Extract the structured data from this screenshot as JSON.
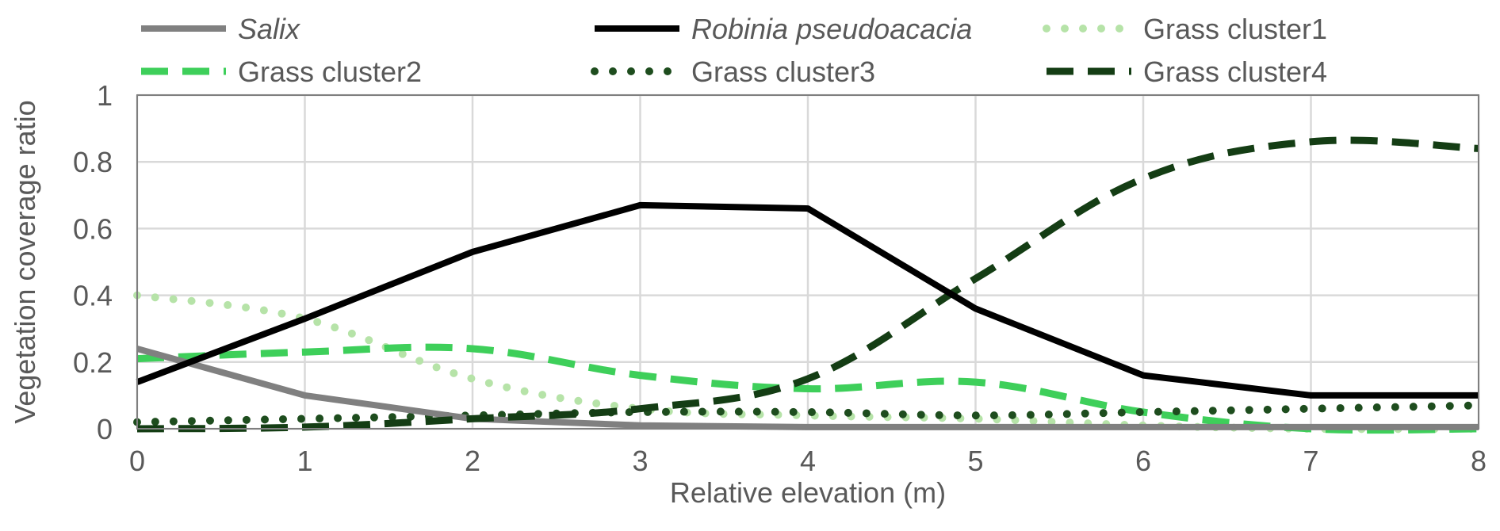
{
  "chart_data": {
    "type": "line",
    "xlabel": "Relative elevation (m)",
    "ylabel": "Vegetation coverage ratio",
    "x": [
      0,
      1,
      2,
      3,
      4,
      5,
      6,
      7,
      8
    ],
    "xlim": [
      0,
      8
    ],
    "ylim": [
      0,
      1
    ],
    "x_ticks": [
      "0",
      "1",
      "2",
      "3",
      "4",
      "5",
      "6",
      "7",
      "8"
    ],
    "y_ticks": [
      "0",
      "0.2",
      "0.4",
      "0.6",
      "0.8",
      "1"
    ],
    "grid": true,
    "legend_position": "top",
    "series": [
      {
        "name": "Salix",
        "italic": true,
        "color": "#808080",
        "style": "solid",
        "values": [
          0.24,
          0.1,
          0.03,
          0.01,
          0.005,
          0.005,
          0.005,
          0.005,
          0.005
        ]
      },
      {
        "name": "Robinia pseudoacacia",
        "italic": true,
        "color": "#000000",
        "style": "solid",
        "values": [
          0.14,
          0.33,
          0.53,
          0.67,
          0.66,
          0.36,
          0.16,
          0.1,
          0.1
        ]
      },
      {
        "name": "Grass cluster1",
        "italic": false,
        "color": "#b6e3a8",
        "style": "dotted",
        "values": [
          0.4,
          0.33,
          0.15,
          0.06,
          0.04,
          0.03,
          0.01,
          0.0,
          0.0
        ]
      },
      {
        "name": "Grass cluster2",
        "italic": false,
        "color": "#3ecf5a",
        "style": "dashed",
        "values": [
          0.21,
          0.23,
          0.24,
          0.16,
          0.12,
          0.14,
          0.05,
          0.0,
          0.0
        ]
      },
      {
        "name": "Grass cluster3",
        "italic": false,
        "color": "#1e4d1e",
        "style": "dotted",
        "values": [
          0.02,
          0.03,
          0.04,
          0.05,
          0.05,
          0.04,
          0.05,
          0.06,
          0.07
        ]
      },
      {
        "name": "Grass cluster4",
        "italic": false,
        "color": "#143d14",
        "style": "dashed",
        "values": [
          0.0,
          0.005,
          0.03,
          0.06,
          0.15,
          0.45,
          0.75,
          0.86,
          0.84
        ]
      }
    ]
  }
}
